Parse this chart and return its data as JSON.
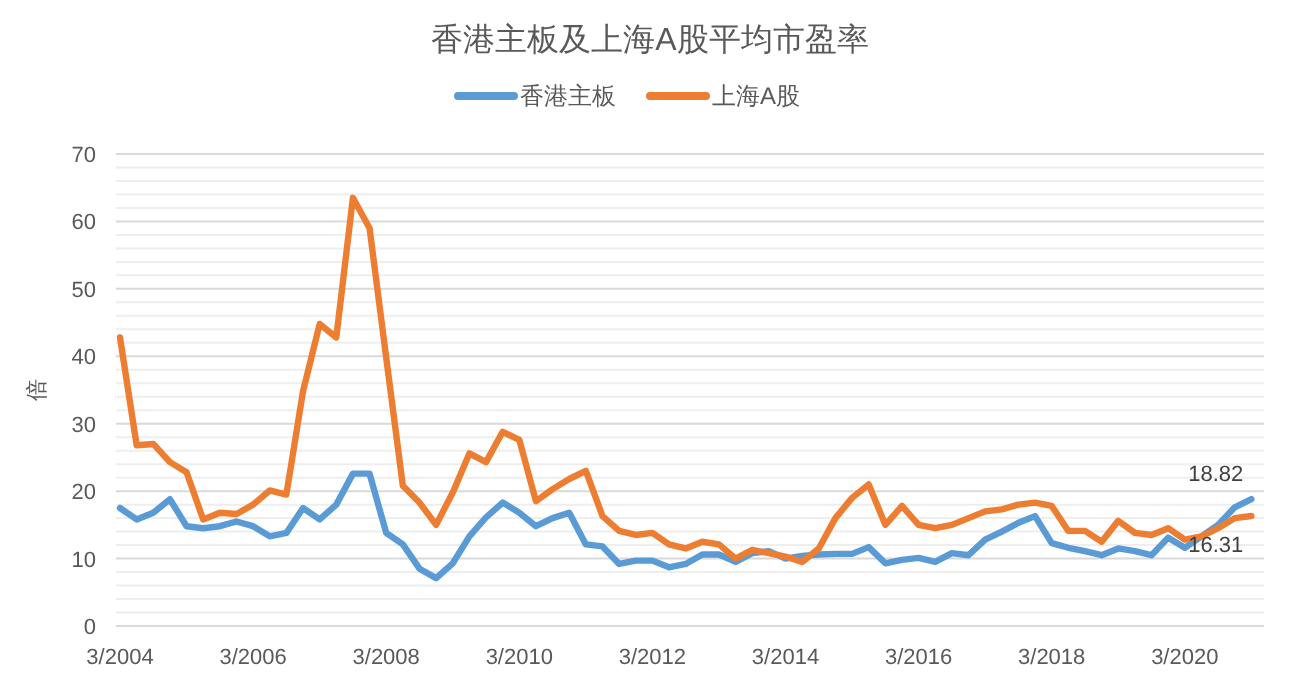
{
  "chart_data": {
    "type": "line",
    "title": "香港主板及上海A股平均市盈率",
    "ylabel": "倍",
    "categories": [
      "3/2004",
      null,
      null,
      null,
      null,
      null,
      null,
      null,
      "3/2006",
      null,
      null,
      null,
      null,
      null,
      null,
      null,
      "3/2008",
      null,
      null,
      null,
      null,
      null,
      null,
      null,
      "3/2010",
      null,
      null,
      null,
      null,
      null,
      null,
      null,
      "3/2012",
      null,
      null,
      null,
      null,
      null,
      null,
      null,
      "3/2014",
      null,
      null,
      null,
      null,
      null,
      null,
      null,
      "3/2016",
      null,
      null,
      null,
      null,
      null,
      null,
      null,
      "3/2018",
      null,
      null,
      null,
      null,
      null,
      null,
      null,
      "3/2020",
      null,
      null,
      null,
      null
    ],
    "series": [
      {
        "name": "香港主板",
        "color": "#5b9bd5",
        "values": [
          17.5,
          15.8,
          16.8,
          18.8,
          14.8,
          14.5,
          14.8,
          15.5,
          14.8,
          13.3,
          13.8,
          17.5,
          15.8,
          18,
          22.6,
          22.6,
          13.8,
          12.1,
          8.5,
          7.1,
          9.3,
          13.3,
          16.1,
          18.3,
          16.8,
          14.8,
          16,
          16.8,
          12.1,
          11.8,
          9.2,
          9.7,
          9.7,
          8.7,
          9.2,
          10.6,
          10.6,
          9.5,
          10.8,
          11.1,
          10,
          10.4,
          10.6,
          10.7,
          10.7,
          11.7,
          9.3,
          9.8,
          10.1,
          9.5,
          10.8,
          10.5,
          12.8,
          14,
          15.3,
          16.3,
          12.3,
          11.6,
          11.1,
          10.5,
          11.5,
          11.1,
          10.5,
          13.1,
          11.6,
          13.3,
          15,
          17.6,
          18.82
        ],
        "value_labels": [
          null,
          null,
          null,
          null,
          null,
          null,
          null,
          null,
          null,
          null,
          null,
          null,
          null,
          null,
          null,
          null,
          null,
          null,
          null,
          null,
          null,
          null,
          null,
          null,
          null,
          null,
          null,
          null,
          null,
          null,
          null,
          null,
          null,
          null,
          null,
          null,
          null,
          null,
          null,
          null,
          null,
          null,
          null,
          null,
          null,
          null,
          null,
          null,
          null,
          null,
          null,
          null,
          null,
          null,
          null,
          null,
          null,
          null,
          null,
          null,
          null,
          null,
          null,
          null,
          null,
          null,
          null,
          null,
          "18.82"
        ]
      },
      {
        "name": "上海A股",
        "color": "#ed7d31",
        "values": [
          42.8,
          26.8,
          27,
          24.3,
          22.8,
          15.8,
          16.8,
          16.6,
          18,
          20.1,
          19.5,
          34.8,
          44.8,
          42.8,
          63.5,
          59,
          39.8,
          20.8,
          18.3,
          15,
          19.8,
          25.6,
          24.3,
          28.8,
          27.6,
          18.5,
          20.3,
          21.8,
          23,
          16.3,
          14.1,
          13.5,
          13.8,
          12.1,
          11.5,
          12.5,
          12.1,
          10,
          11.3,
          10.8,
          10.3,
          9.5,
          11.5,
          16,
          19,
          21,
          15,
          17.8,
          15,
          14.5,
          15,
          16,
          17,
          17.3,
          18,
          18.3,
          17.8,
          14.1,
          14.1,
          12.5,
          15.6,
          13.8,
          13.5,
          14.5,
          12.8,
          13.3,
          14.5,
          16,
          16.31
        ],
        "value_labels": [
          null,
          null,
          null,
          null,
          null,
          null,
          null,
          null,
          null,
          null,
          null,
          null,
          null,
          null,
          null,
          null,
          null,
          null,
          null,
          null,
          null,
          null,
          null,
          null,
          null,
          null,
          null,
          null,
          null,
          null,
          null,
          null,
          null,
          null,
          null,
          null,
          null,
          null,
          null,
          null,
          null,
          null,
          null,
          null,
          null,
          null,
          null,
          null,
          null,
          null,
          null,
          null,
          null,
          null,
          null,
          null,
          null,
          null,
          null,
          null,
          null,
          null,
          null,
          null,
          null,
          null,
          null,
          null,
          "16.31"
        ]
      }
    ],
    "ylim": [
      0,
      70
    ],
    "yticks": [
      0,
      10,
      20,
      30,
      40,
      50,
      60,
      70
    ],
    "grid": "y",
    "legend": "top"
  }
}
